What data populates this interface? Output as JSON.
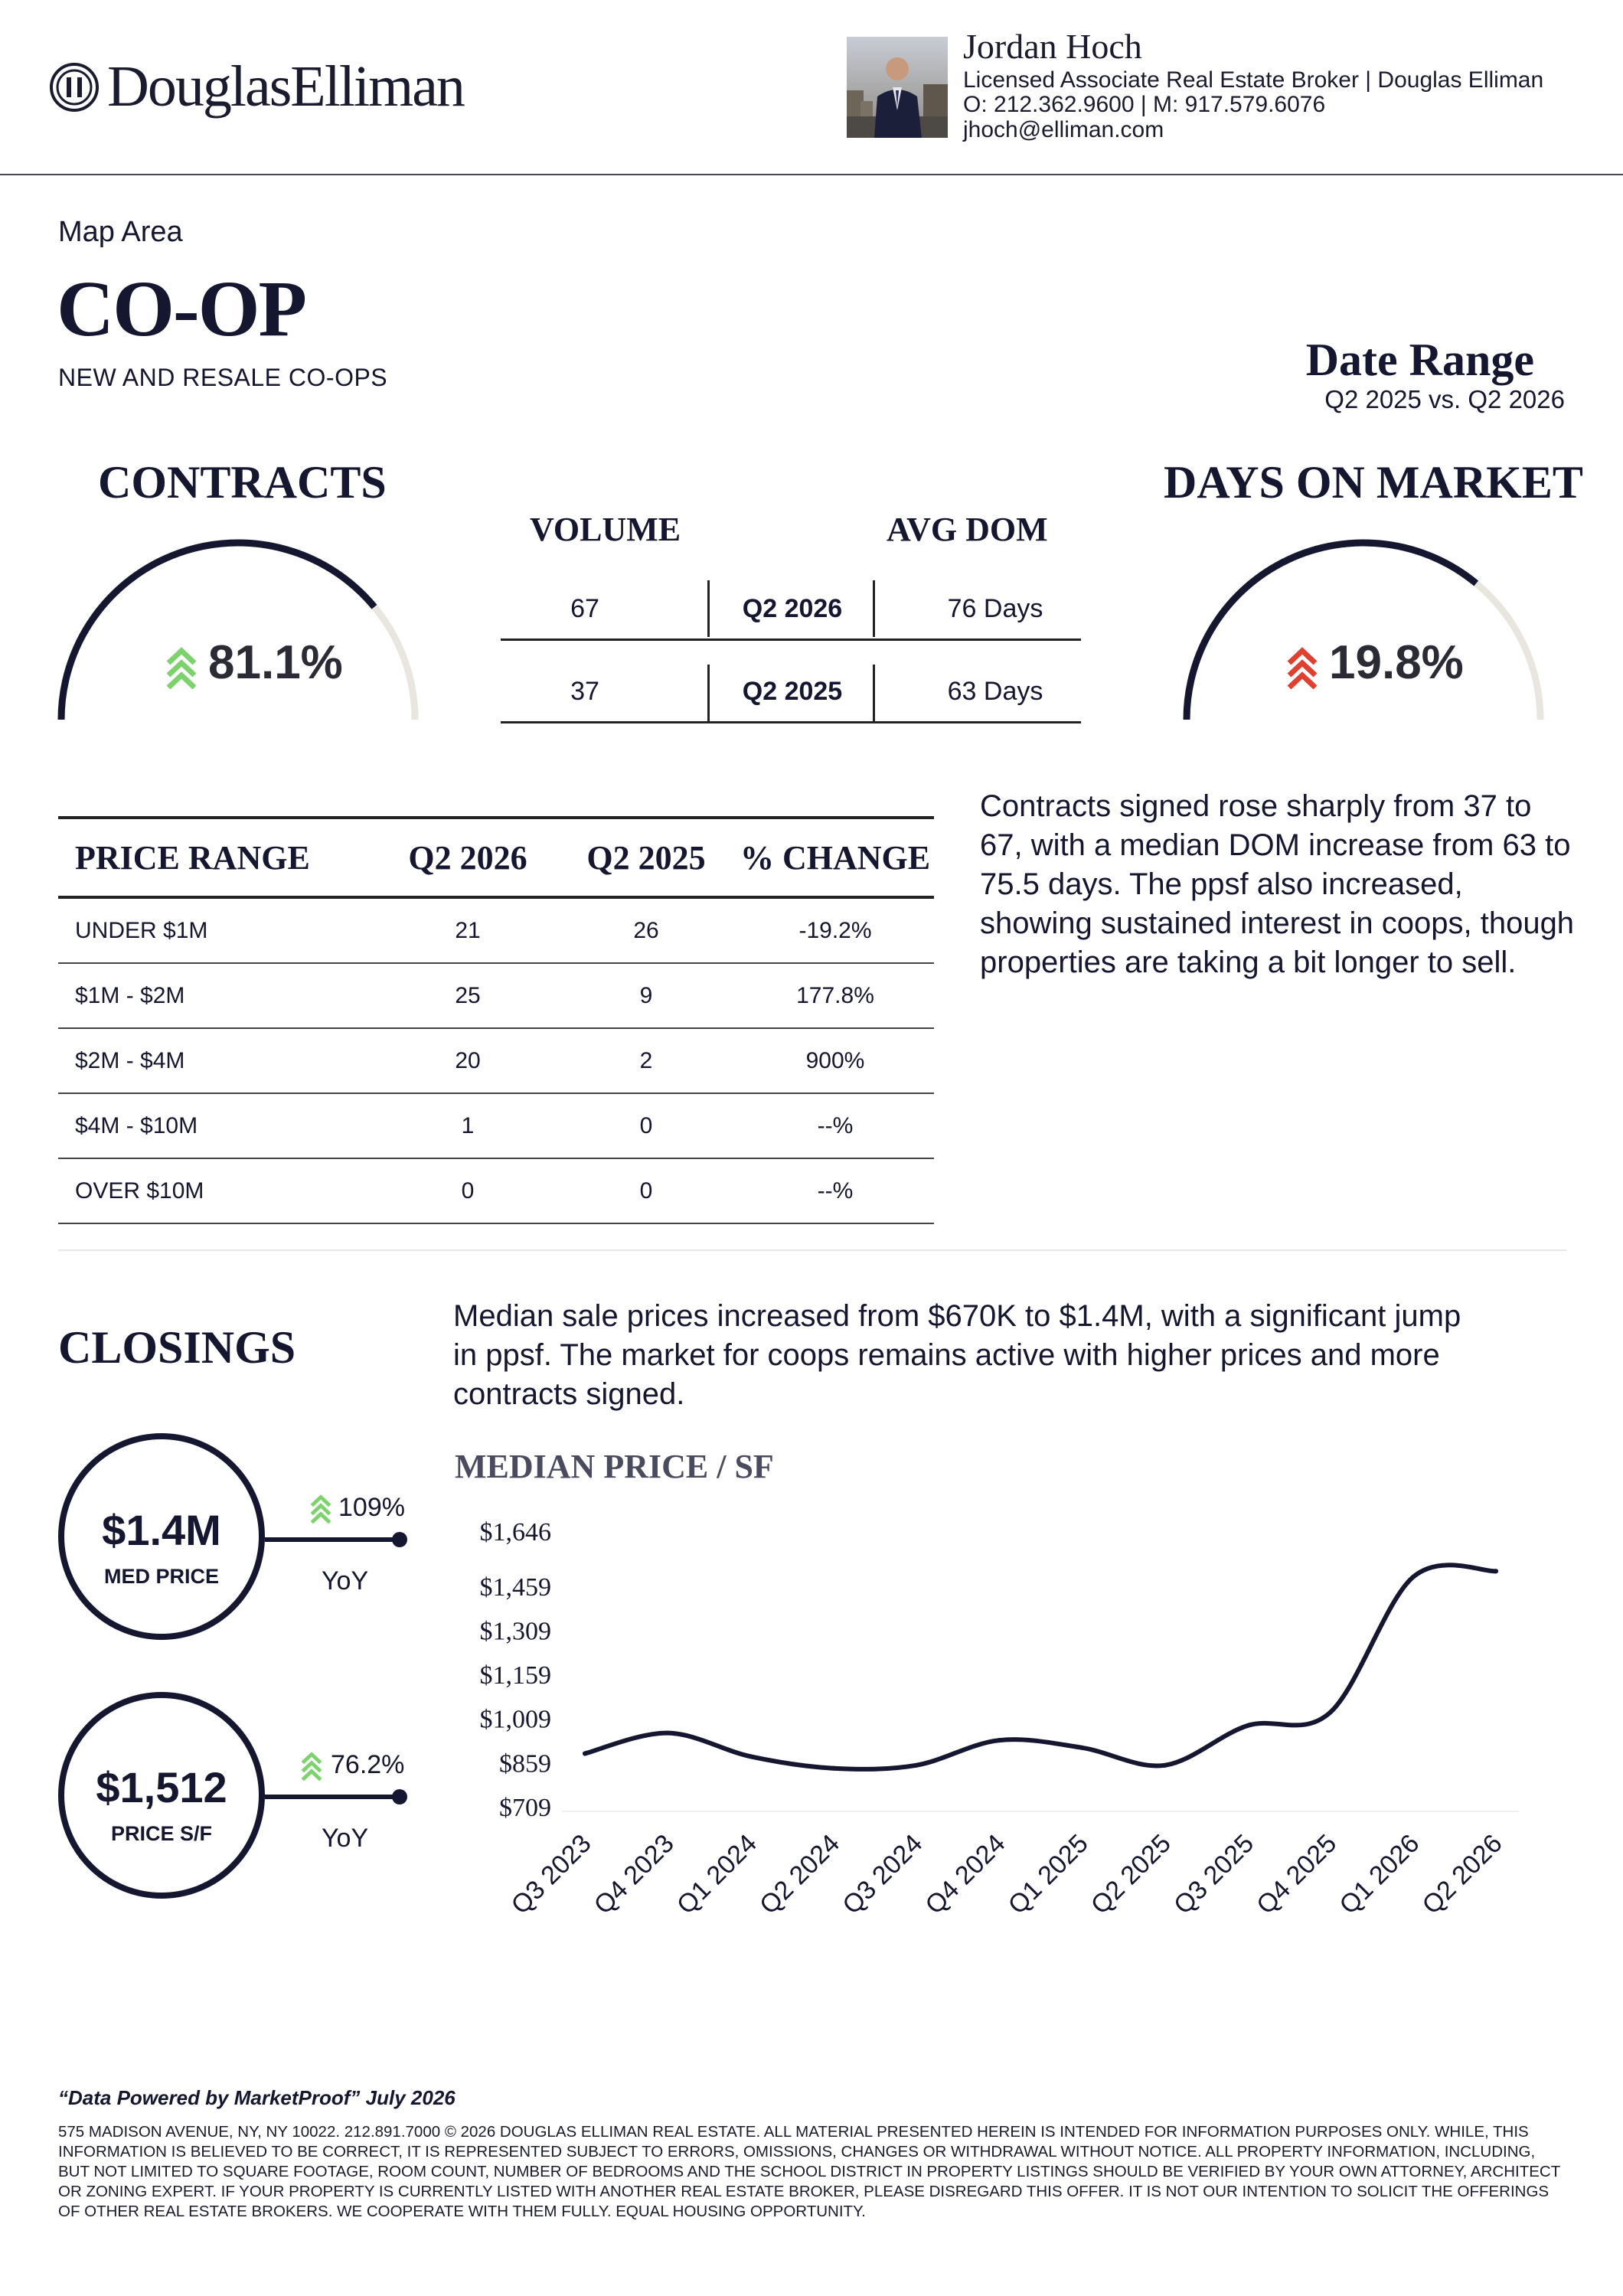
{
  "brand": {
    "name": "DouglasElliman"
  },
  "agent": {
    "name": "Jordan Hoch",
    "title": "Licensed Associate Real Estate Broker | Douglas Elliman",
    "phones": "O: 212.362.9600 | M: 917.579.6076",
    "email": "jhoch@elliman.com"
  },
  "report": {
    "area": "Map Area",
    "title": "CO-OP",
    "subtitle": "NEW AND RESALE CO-OPS",
    "date_range_title": "Date Range",
    "date_range": "Q2 2025 vs. Q2 2026"
  },
  "contracts": {
    "title": "CONTRACTS",
    "change": "81.1%",
    "direction": "up",
    "arrow_color": "#7dd36b",
    "gauge_fraction": 0.78
  },
  "days_on_market": {
    "title": "DAYS ON MARKET",
    "change": "19.8%",
    "direction": "up",
    "arrow_color": "#e0402f",
    "gauge_fraction": 0.72
  },
  "volume_table": {
    "col_volume": "VOLUME",
    "col_dom": "AVG DOM",
    "rows": [
      {
        "volume": "67",
        "period": "Q2 2026",
        "dom": "76 Days"
      },
      {
        "volume": "37",
        "period": "Q2 2025",
        "dom": "63 Days"
      }
    ]
  },
  "price_range_table": {
    "headers": [
      "PRICE RANGE",
      "Q2 2026",
      "Q2 2025",
      "% CHANGE"
    ],
    "rows": [
      {
        "range": "UNDER $1M",
        "q2_2026": "21",
        "q2_2025": "26",
        "change": "-19.2%"
      },
      {
        "range": "$1M - $2M",
        "q2_2026": "25",
        "q2_2025": "9",
        "change": "177.8%"
      },
      {
        "range": "$2M - $4M",
        "q2_2026": "20",
        "q2_2025": "2",
        "change": "900%"
      },
      {
        "range": "$4M - $10M",
        "q2_2026": "1",
        "q2_2025": "0",
        "change": "--%"
      },
      {
        "range": "OVER $10M",
        "q2_2026": "0",
        "q2_2025": "0",
        "change": "--%"
      }
    ]
  },
  "contracts_commentary": "Contracts signed rose sharply from 37 to 67, with a median DOM increase from 63 to 75.5 days. The ppsf also increased, showing sustained interest in coops, though properties are taking a bit longer to sell.",
  "closings": {
    "title": "CLOSINGS",
    "commentary": "Median sale prices increased from $670K to $1.4M, with a significant jump in ppsf. The market for coops remains active with higher prices and more contracts signed.",
    "metrics": [
      {
        "value": "$1.4M",
        "label": "MED PRICE",
        "change": "109%",
        "period": "YoY"
      },
      {
        "value": "$1,512",
        "label": "PRICE S/F",
        "change": "76.2%",
        "period": "YoY"
      }
    ],
    "arrow_color": "#7dd36b"
  },
  "chart_data": {
    "type": "line",
    "title": "MEDIAN PRICE / SF",
    "categories": [
      "Q3 2023",
      "Q4 2023",
      "Q1 2024",
      "Q2 2024",
      "Q3 2024",
      "Q4 2024",
      "Q1 2025",
      "Q2 2025",
      "Q3 2025",
      "Q4 2025",
      "Q1 2026",
      "Q2 2026"
    ],
    "values": [
      890,
      960,
      880,
      840,
      850,
      935,
      910,
      850,
      985,
      1030,
      1490,
      1510
    ],
    "y_ticks": [
      "$1,646",
      "$1,459",
      "$1,309",
      "$1,159",
      "$1,009",
      "$859",
      "$709"
    ],
    "y_tick_values": [
      1646,
      1459,
      1309,
      1159,
      1009,
      859,
      709
    ],
    "ylim": [
      709,
      1646
    ],
    "line_color": "#151630",
    "grid": false,
    "legend": "none"
  },
  "footer": {
    "source": "“Data Powered by MarketProof” July 2026",
    "disclaimer": "575 MADISON AVENUE, NY, NY 10022. 212.891.7000 © 2026 DOUGLAS ELLIMAN REAL ESTATE. ALL MATERIAL PRESENTED HEREIN IS INTENDED FOR INFORMATION PURPOSES ONLY. WHILE, THIS INFORMATION IS BELIEVED TO BE CORRECT, IT IS REPRESENTED SUBJECT TO ERRORS, OMISSIONS, CHANGES OR WITHDRAWAL WITHOUT NOTICE. ALL PROPERTY INFORMATION, INCLUDING, BUT NOT LIMITED TO SQUARE FOOTAGE, ROOM COUNT, NUMBER OF BEDROOMS AND THE SCHOOL DISTRICT IN PROPERTY LISTINGS SHOULD BE VERIFIED BY YOUR OWN ATTORNEY, ARCHITECT OR ZONING EXPERT. IF YOUR PROPERTY IS CURRENTLY LISTED WITH ANOTHER REAL ESTATE BROKER, PLEASE DISREGARD THIS OFFER. IT IS NOT OUR INTENTION TO SOLICIT THE OFFERINGS OF OTHER REAL ESTATE BROKERS. WE COOPERATE WITH THEM FULLY. EQUAL HOUSING OPPORTUNITY."
  }
}
